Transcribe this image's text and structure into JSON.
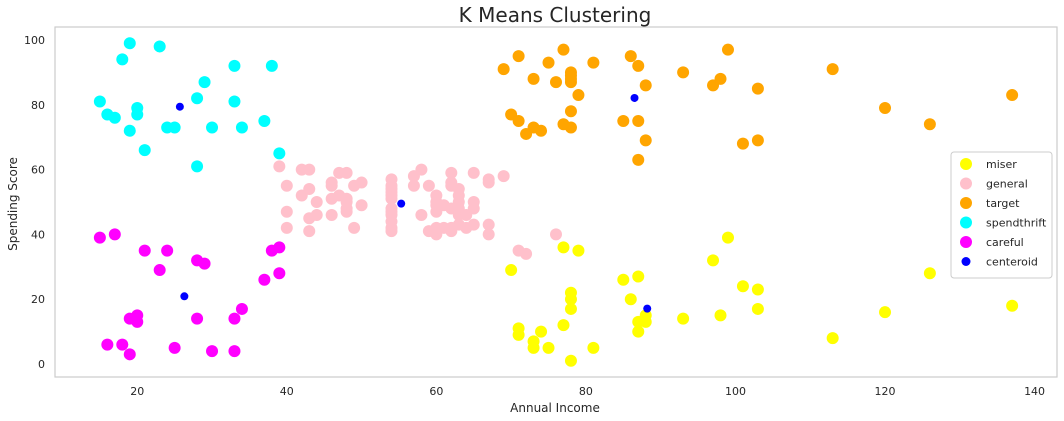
{
  "chart_data": {
    "type": "scatter",
    "title": "K Means Clustering",
    "xlabel": "Annual Income",
    "ylabel": "Spending Score",
    "xlim": [
      9,
      143
    ],
    "ylim": [
      -4,
      104
    ],
    "xticks": [
      20,
      40,
      60,
      80,
      100,
      120,
      140
    ],
    "yticks": [
      0,
      20,
      40,
      60,
      80,
      100
    ],
    "grid": false,
    "legend_position": "center-right",
    "series": [
      {
        "name": "miser",
        "color": "#ffff00",
        "points": [
          [
            70,
            29
          ],
          [
            71,
            11
          ],
          [
            71,
            9
          ],
          [
            73,
            5
          ],
          [
            73,
            7
          ],
          [
            74,
            10
          ],
          [
            75,
            5
          ],
          [
            77,
            12
          ],
          [
            77,
            36
          ],
          [
            78,
            1
          ],
          [
            78,
            17
          ],
          [
            78,
            20
          ],
          [
            78,
            22
          ],
          [
            79,
            35
          ],
          [
            81,
            5
          ],
          [
            85,
            26
          ],
          [
            86,
            20
          ],
          [
            87,
            27
          ],
          [
            87,
            10
          ],
          [
            87,
            13
          ],
          [
            88,
            13
          ],
          [
            88,
            15
          ],
          [
            93,
            14
          ],
          [
            97,
            32
          ],
          [
            98,
            15
          ],
          [
            99,
            39
          ],
          [
            101,
            24
          ],
          [
            103,
            17
          ],
          [
            103,
            23
          ],
          [
            113,
            8
          ],
          [
            120,
            16
          ],
          [
            126,
            28
          ],
          [
            137,
            18
          ]
        ]
      },
      {
        "name": "general",
        "color": "#ffc0cb",
        "points": [
          [
            39,
            61
          ],
          [
            40,
            55
          ],
          [
            40,
            47
          ],
          [
            40,
            42
          ],
          [
            42,
            52
          ],
          [
            42,
            60
          ],
          [
            43,
            60
          ],
          [
            43,
            54
          ],
          [
            43,
            45
          ],
          [
            43,
            41
          ],
          [
            44,
            50
          ],
          [
            44,
            46
          ],
          [
            46,
            51
          ],
          [
            46,
            46
          ],
          [
            46,
            56
          ],
          [
            46,
            55
          ],
          [
            47,
            52
          ],
          [
            47,
            59
          ],
          [
            48,
            51
          ],
          [
            48,
            59
          ],
          [
            48,
            50
          ],
          [
            48,
            48
          ],
          [
            48,
            47
          ],
          [
            49,
            42
          ],
          [
            49,
            55
          ],
          [
            50,
            49
          ],
          [
            50,
            56
          ],
          [
            54,
            47
          ],
          [
            54,
            54
          ],
          [
            54,
            53
          ],
          [
            54,
            48
          ],
          [
            54,
            52
          ],
          [
            54,
            42
          ],
          [
            54,
            51
          ],
          [
            54,
            55
          ],
          [
            54,
            41
          ],
          [
            54,
            44
          ],
          [
            54,
            57
          ],
          [
            54,
            46
          ],
          [
            57,
            58
          ],
          [
            57,
            55
          ],
          [
            58,
            60
          ],
          [
            58,
            46
          ],
          [
            59,
            55
          ],
          [
            59,
            41
          ],
          [
            60,
            49
          ],
          [
            60,
            40
          ],
          [
            60,
            42
          ],
          [
            60,
            52
          ],
          [
            60,
            47
          ],
          [
            60,
            50
          ],
          [
            61,
            42
          ],
          [
            61,
            49
          ],
          [
            62,
            41
          ],
          [
            62,
            48
          ],
          [
            62,
            59
          ],
          [
            62,
            55
          ],
          [
            62,
            56
          ],
          [
            62,
            42
          ],
          [
            63,
            50
          ],
          [
            63,
            46
          ],
          [
            63,
            43
          ],
          [
            63,
            48
          ],
          [
            63,
            52
          ],
          [
            63,
            54
          ],
          [
            64,
            42
          ],
          [
            64,
            46
          ],
          [
            65,
            48
          ],
          [
            65,
            50
          ],
          [
            65,
            43
          ],
          [
            65,
            59
          ],
          [
            67,
            43
          ],
          [
            67,
            57
          ],
          [
            67,
            56
          ],
          [
            67,
            40
          ],
          [
            69,
            58
          ],
          [
            71,
            35
          ],
          [
            72,
            34
          ],
          [
            76,
            40
          ]
        ]
      },
      {
        "name": "target",
        "color": "#ffa500",
        "points": [
          [
            69,
            91
          ],
          [
            70,
            77
          ],
          [
            71,
            95
          ],
          [
            71,
            75
          ],
          [
            72,
            71
          ],
          [
            73,
            88
          ],
          [
            73,
            73
          ],
          [
            74,
            72
          ],
          [
            75,
            93
          ],
          [
            76,
            87
          ],
          [
            77,
            97
          ],
          [
            77,
            74
          ],
          [
            78,
            90
          ],
          [
            78,
            88
          ],
          [
            78,
            87
          ],
          [
            78,
            89
          ],
          [
            78,
            78
          ],
          [
            78,
            73
          ],
          [
            79,
            83
          ],
          [
            81,
            93
          ],
          [
            85,
            75
          ],
          [
            86,
            95
          ],
          [
            87,
            63
          ],
          [
            87,
            75
          ],
          [
            87,
            92
          ],
          [
            88,
            86
          ],
          [
            88,
            69
          ],
          [
            93,
            90
          ],
          [
            97,
            86
          ],
          [
            98,
            88
          ],
          [
            99,
            97
          ],
          [
            101,
            68
          ],
          [
            103,
            85
          ],
          [
            103,
            69
          ],
          [
            113,
            91
          ],
          [
            120,
            79
          ],
          [
            126,
            74
          ],
          [
            137,
            83
          ]
        ]
      },
      {
        "name": "spendthrift",
        "color": "#00ffff",
        "points": [
          [
            15,
            81
          ],
          [
            16,
            77
          ],
          [
            17,
            76
          ],
          [
            18,
            94
          ],
          [
            19,
            72
          ],
          [
            19,
            99
          ],
          [
            20,
            77
          ],
          [
            20,
            79
          ],
          [
            21,
            66
          ],
          [
            23,
            98
          ],
          [
            24,
            73
          ],
          [
            25,
            73
          ],
          [
            28,
            82
          ],
          [
            28,
            61
          ],
          [
            29,
            87
          ],
          [
            30,
            73
          ],
          [
            33,
            92
          ],
          [
            33,
            81
          ],
          [
            34,
            73
          ],
          [
            37,
            75
          ],
          [
            38,
            92
          ],
          [
            39,
            65
          ]
        ]
      },
      {
        "name": "careful",
        "color": "#ff00ff",
        "points": [
          [
            15,
            39
          ],
          [
            16,
            6
          ],
          [
            17,
            40
          ],
          [
            18,
            6
          ],
          [
            19,
            3
          ],
          [
            19,
            14
          ],
          [
            20,
            15
          ],
          [
            20,
            13
          ],
          [
            21,
            35
          ],
          [
            23,
            29
          ],
          [
            24,
            35
          ],
          [
            25,
            5
          ],
          [
            28,
            14
          ],
          [
            28,
            32
          ],
          [
            29,
            31
          ],
          [
            30,
            4
          ],
          [
            33,
            4
          ],
          [
            33,
            14
          ],
          [
            34,
            17
          ],
          [
            37,
            26
          ],
          [
            38,
            35
          ],
          [
            39,
            36
          ],
          [
            39,
            28
          ]
        ]
      },
      {
        "name": "centeroid",
        "color": "#0000ff",
        "points": [
          [
            25.7,
            79.4
          ],
          [
            55.3,
            49.5
          ],
          [
            86.5,
            82.1
          ],
          [
            26.3,
            20.9
          ],
          [
            88.2,
            17.1
          ]
        ]
      }
    ]
  }
}
